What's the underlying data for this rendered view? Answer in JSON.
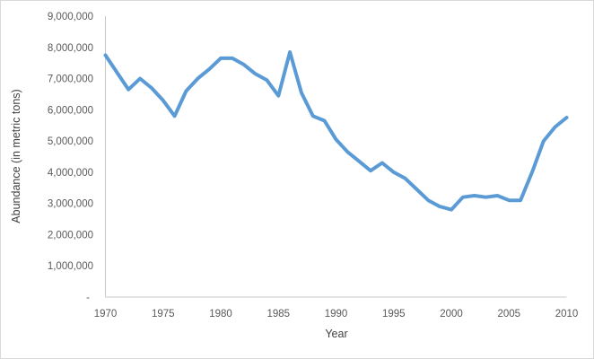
{
  "chart_data": {
    "type": "line",
    "xlabel": "Year",
    "ylabel": "Abundance (in metric tons)",
    "x": [
      1970,
      1971,
      1972,
      1973,
      1974,
      1975,
      1976,
      1977,
      1978,
      1979,
      1980,
      1981,
      1982,
      1983,
      1984,
      1985,
      1986,
      1987,
      1988,
      1989,
      1990,
      1991,
      1992,
      1993,
      1994,
      1995,
      1996,
      1997,
      1998,
      1999,
      2000,
      2001,
      2002,
      2003,
      2004,
      2005,
      2006,
      2007,
      2008,
      2009,
      2010
    ],
    "values": [
      7750000,
      7200000,
      6650000,
      7000000,
      6700000,
      6300000,
      5800000,
      6600000,
      7000000,
      7300000,
      7650000,
      7650000,
      7450000,
      7150000,
      6950000,
      6450000,
      7850000,
      6550000,
      5800000,
      5650000,
      5050000,
      4650000,
      4350000,
      4050000,
      4300000,
      4000000,
      3800000,
      3450000,
      3100000,
      2900000,
      2800000,
      3200000,
      3250000,
      3200000,
      3250000,
      3100000,
      3100000,
      4000000,
      5000000,
      5450000,
      5750000
    ],
    "xlim": [
      1970,
      2010
    ],
    "ylim": [
      0,
      9000000
    ],
    "x_tick_values": [
      1970,
      1975,
      1980,
      1985,
      1990,
      1995,
      2000,
      2005,
      2010
    ],
    "x_tick_labels": [
      "1970",
      "1975",
      "1980",
      "1985",
      "1990",
      "1995",
      "2000",
      "2005",
      "2010"
    ],
    "y_tick_values": [
      0,
      1000000,
      2000000,
      3000000,
      4000000,
      5000000,
      6000000,
      7000000,
      8000000,
      9000000
    ],
    "y_tick_labels": [
      "-",
      "1,000,000",
      "2,000,000",
      "3,000,000",
      "4,000,000",
      "5,000,000",
      "6,000,000",
      "7,000,000",
      "8,000,000",
      "9,000,000"
    ],
    "grid": false,
    "legend": null,
    "line_color": "#5B9BD5",
    "line_width": 4,
    "axis_color": "#c9c9c9",
    "tick_text_color": "#595959",
    "axis_title_color": "#3f3f3f",
    "figure_border_color": "#d9d9d9"
  }
}
